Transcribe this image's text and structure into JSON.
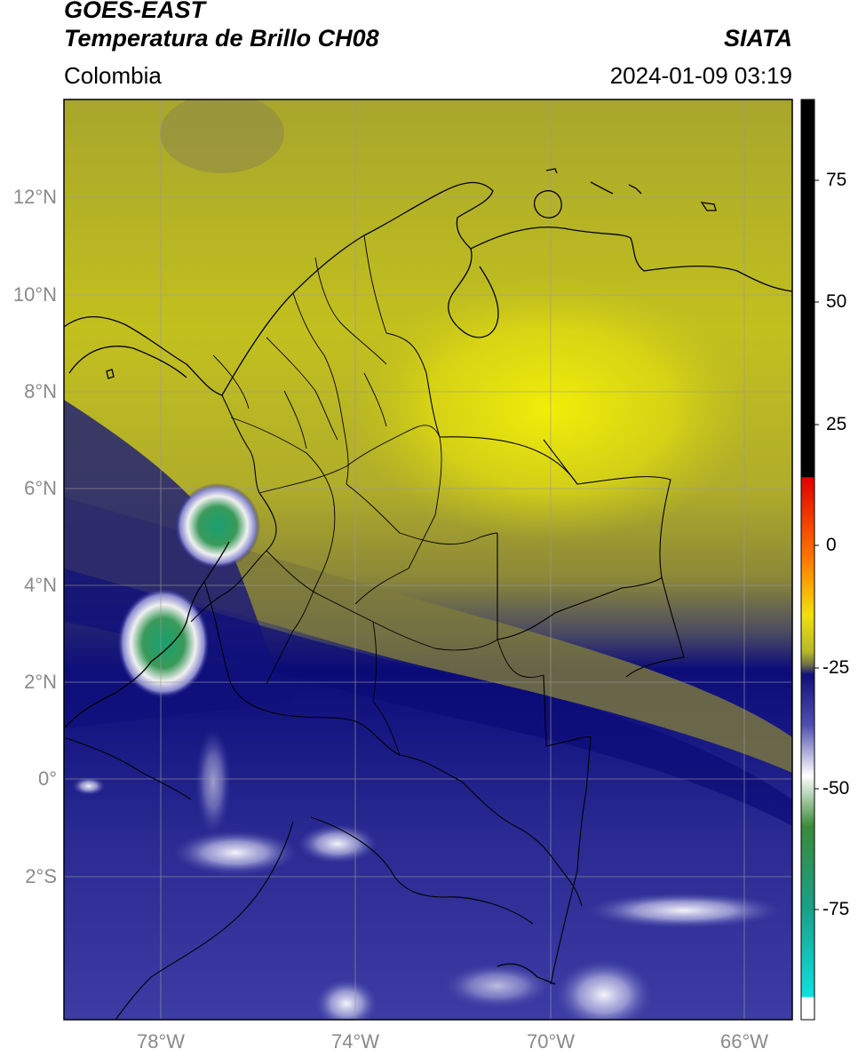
{
  "header": {
    "satellite": "GOES-EAST",
    "product": "Temperatura de Brillo CH08",
    "region": "Colombia",
    "source": "SIATA",
    "timestamp": "2024-01-09 03:19"
  },
  "map": {
    "lat_ticks": [
      "12°N",
      "10°N",
      "8°N",
      "6°N",
      "4°N",
      "2°N",
      "0°",
      "2°S"
    ],
    "lon_ticks": [
      "78°W",
      "74°W",
      "70°W",
      "66°W"
    ],
    "extent": {
      "lon_min": -80,
      "lon_max": -65,
      "lat_min": -5,
      "lat_max": 14
    },
    "gridlines": true
  },
  "colorbar": {
    "ticks": [
      "75",
      "50",
      "25",
      "0",
      "-25",
      "-50",
      "-75"
    ],
    "range": [
      -95,
      90
    ]
  },
  "colors": {
    "warm_yellow": "#e8e80c",
    "olive": "#7d7a3a",
    "deep_blue": "#0a0a7a",
    "mid_blue": "#3a3aa0",
    "cloud_white": "#e8e8f4",
    "cold_green": "#3a9a5a",
    "cold_teal": "#2ab0a0"
  }
}
